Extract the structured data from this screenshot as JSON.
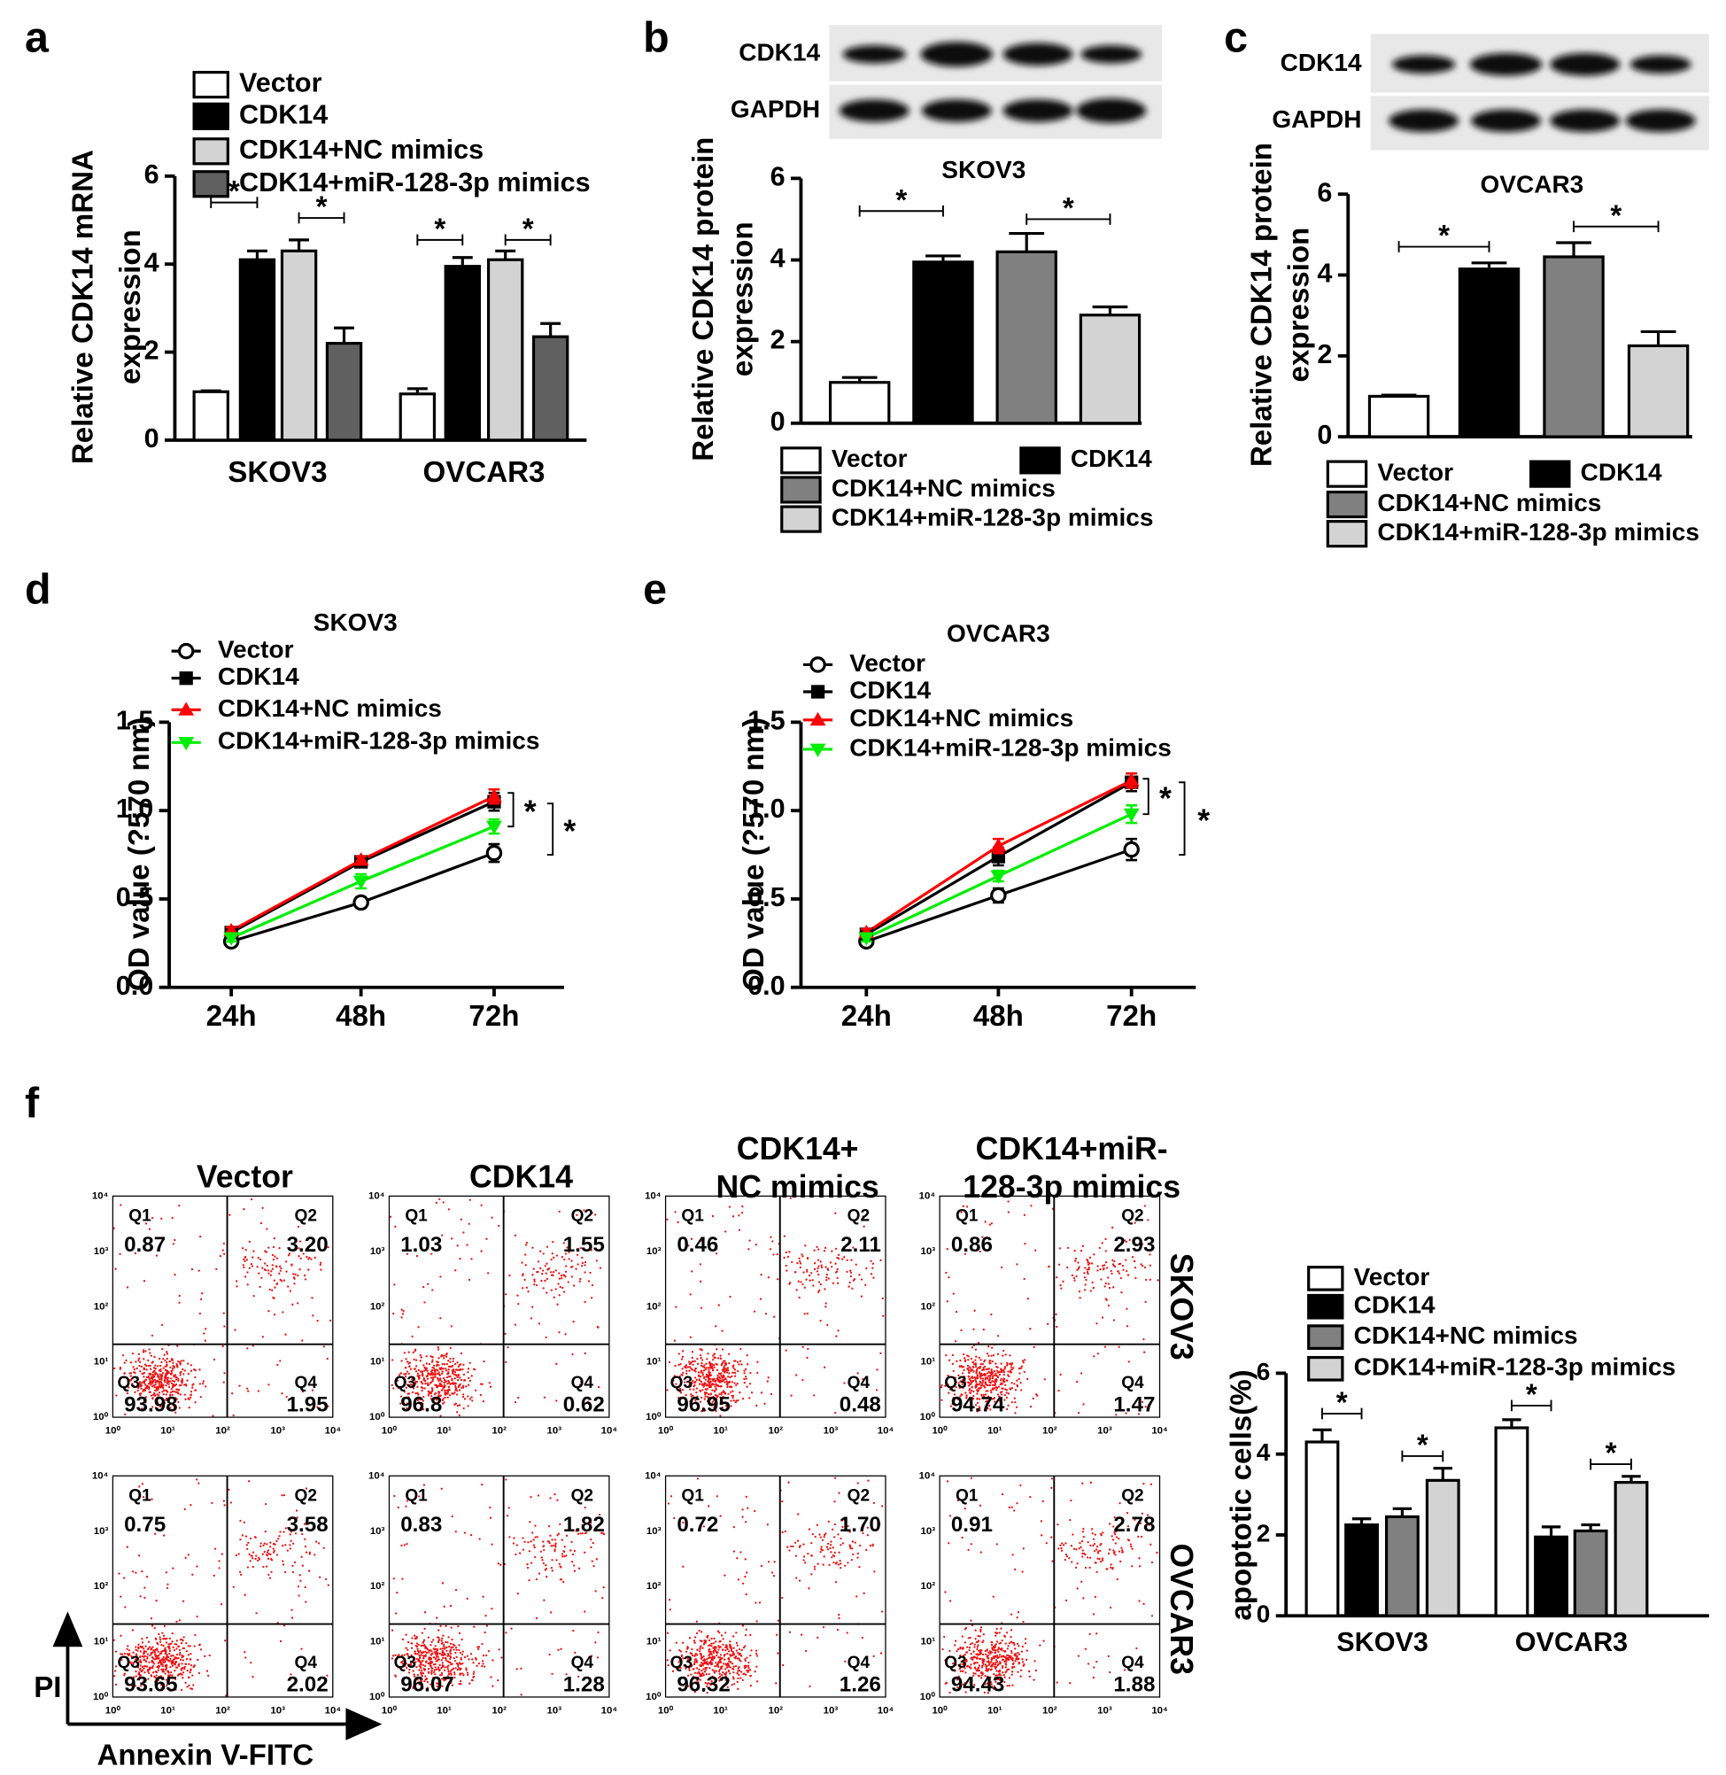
{
  "panel_labels": [
    "a",
    "b",
    "c",
    "d",
    "e",
    "f"
  ],
  "blots": [
    {
      "rows": [
        "CDK14",
        "GAPDH"
      ]
    },
    {
      "rows": [
        "CDK14",
        "GAPDH"
      ]
    }
  ],
  "chart_data": [
    {
      "type": "bar",
      "ylabel": [
        "Relative CDK14 mRNA",
        "expression"
      ],
      "categories": [
        "SKOV3",
        "OVCAR3"
      ],
      "series": [
        {
          "name": "Vector",
          "color": "#ffffff",
          "values": [
            1.1,
            1.05
          ],
          "errors": [
            0.02,
            0.12
          ]
        },
        {
          "name": "CDK14",
          "color": "#000000",
          "values": [
            4.1,
            3.95
          ],
          "errors": [
            0.2,
            0.2
          ]
        },
        {
          "name": "CDK14+NC mimics",
          "color": "#d3d3d3",
          "values": [
            4.3,
            4.1
          ],
          "errors": [
            0.25,
            0.2
          ]
        },
        {
          "name": "CDK14+miR-128-3p mimics",
          "color": "#606060",
          "values": [
            2.2,
            2.35
          ],
          "errors": [
            0.35,
            0.3
          ]
        }
      ],
      "ylim": [
        0,
        6
      ],
      "yticks": [
        0,
        2,
        4,
        6
      ],
      "significance": [
        "*",
        "*",
        "*",
        "*"
      ]
    },
    {
      "type": "bar",
      "title": "SKOV3",
      "ylabel": [
        "Relative CDK14 protein",
        "expression"
      ],
      "series": [
        {
          "name": "Vector",
          "color": "#ffffff",
          "values": [
            1.0
          ],
          "errors": [
            0.12
          ]
        },
        {
          "name": "CDK14",
          "color": "#000000",
          "values": [
            3.95
          ],
          "errors": [
            0.15
          ]
        },
        {
          "name": "CDK14+NC mimics",
          "color": "#808080",
          "values": [
            4.2
          ],
          "errors": [
            0.45
          ]
        },
        {
          "name": "CDK14+miR-128-3p mimics",
          "color": "#d3d3d3",
          "values": [
            2.65
          ],
          "errors": [
            0.2
          ]
        }
      ],
      "ylim": [
        0,
        6
      ],
      "yticks": [
        0,
        2,
        4,
        6
      ],
      "significance": [
        "*",
        "*"
      ]
    },
    {
      "type": "bar",
      "title": "OVCAR3",
      "ylabel": [
        "Relative CDK14 protein",
        "expression"
      ],
      "series": [
        {
          "name": "Vector",
          "color": "#ffffff",
          "values": [
            1.0
          ],
          "errors": [
            0.03
          ]
        },
        {
          "name": "CDK14",
          "color": "#000000",
          "values": [
            4.15
          ],
          "errors": [
            0.15
          ]
        },
        {
          "name": "CDK14+NC mimics",
          "color": "#808080",
          "values": [
            4.45
          ],
          "errors": [
            0.35
          ]
        },
        {
          "name": "CDK14+miR-128-3p mimics",
          "color": "#d3d3d3",
          "values": [
            2.25
          ],
          "errors": [
            0.35
          ]
        }
      ],
      "ylim": [
        0,
        6
      ],
      "yticks": [
        0,
        2,
        4,
        6
      ],
      "significance": [
        "*",
        "*"
      ]
    },
    {
      "type": "line",
      "title": "SKOV3",
      "ylabel": "OD value (?570 nm)",
      "categories": [
        "24h",
        "48h",
        "72h"
      ],
      "series": [
        {
          "name": "Vector",
          "color": "#000000",
          "marker": "open-circle",
          "values": [
            0.26,
            0.48,
            0.76
          ],
          "errors": [
            0.02,
            0.03,
            0.05
          ]
        },
        {
          "name": "CDK14",
          "color": "#000000",
          "marker": "square",
          "values": [
            0.31,
            0.71,
            1.05
          ],
          "errors": [
            0.02,
            0.02,
            0.05
          ]
        },
        {
          "name": "CDK14+NC mimics",
          "color": "#ff0000",
          "marker": "triangle",
          "values": [
            0.32,
            0.72,
            1.08
          ],
          "errors": [
            0.02,
            0.02,
            0.04
          ]
        },
        {
          "name": "CDK14+miR-128-3p mimics",
          "color": "#00ee00",
          "marker": "triangle-down",
          "values": [
            0.28,
            0.6,
            0.91
          ],
          "errors": [
            0.02,
            0.04,
            0.04
          ]
        }
      ],
      "ylim": [
        0,
        1.5
      ],
      "yticks": [
        {
          "value": 0,
          "label": "0.0"
        },
        {
          "value": 0.5,
          "label": "0.5"
        },
        {
          "value": 1,
          "label": "1.0"
        },
        {
          "value": 1.5,
          "label": "1.5"
        }
      ],
      "significance": [
        "*",
        "*"
      ]
    },
    {
      "type": "line",
      "title": "OVCAR3",
      "ylabel": "OD value (?570 nm)",
      "categories": [
        "24h",
        "48h",
        "72h"
      ],
      "series": [
        {
          "name": "Vector",
          "color": "#000000",
          "marker": "open-circle",
          "values": [
            0.26,
            0.52,
            0.78
          ],
          "errors": [
            0.02,
            0.04,
            0.06
          ]
        },
        {
          "name": "CDK14",
          "color": "#000000",
          "marker": "square",
          "values": [
            0.3,
            0.74,
            1.16
          ],
          "errors": [
            0.02,
            0.05,
            0.05
          ]
        },
        {
          "name": "CDK14+NC mimics",
          "color": "#ff0000",
          "marker": "triangle",
          "values": [
            0.31,
            0.8,
            1.17
          ],
          "errors": [
            0.02,
            0.04,
            0.04
          ]
        },
        {
          "name": "CDK14+miR-128-3p mimics",
          "color": "#00ee00",
          "marker": "triangle-down",
          "values": [
            0.28,
            0.63,
            0.98
          ],
          "errors": [
            0.02,
            0.03,
            0.05
          ]
        }
      ],
      "ylim": [
        0,
        1.5
      ],
      "yticks": [
        {
          "value": 0,
          "label": "0.0"
        },
        {
          "value": 0.5,
          "label": "0.5"
        },
        {
          "value": 1,
          "label": "1.0"
        },
        {
          "value": 1.5,
          "label": "1.5"
        }
      ],
      "significance": [
        "*",
        "*"
      ]
    },
    {
      "type": "bar",
      "ylabel": "apoptotic cells(%)",
      "categories": [
        "SKOV3",
        "OVCAR3"
      ],
      "series": [
        {
          "name": "Vector",
          "color": "#ffffff",
          "values": [
            4.3,
            4.65
          ],
          "errors": [
            0.3,
            0.2
          ]
        },
        {
          "name": "CDK14",
          "color": "#000000",
          "values": [
            2.25,
            1.95
          ],
          "errors": [
            0.15,
            0.25
          ]
        },
        {
          "name": "CDK14+NC mimics",
          "color": "#808080",
          "values": [
            2.45,
            2.1
          ],
          "errors": [
            0.2,
            0.15
          ]
        },
        {
          "name": "CDK14+miR-128-3p mimics",
          "color": "#d3d3d3",
          "values": [
            3.35,
            3.3
          ],
          "errors": [
            0.3,
            0.15
          ]
        }
      ],
      "ylim": [
        0,
        6
      ],
      "yticks": [
        0,
        2,
        4,
        6
      ],
      "significance": [
        "*",
        "*",
        "*",
        "*"
      ]
    }
  ],
  "flow": {
    "columns": [
      [
        "Vector"
      ],
      [
        "CDK14"
      ],
      [
        "CDK14+",
        "NC mimics"
      ],
      [
        "CDK14+miR-",
        "128-3p mimics"
      ]
    ],
    "rows": [
      "SKOV3",
      "OVCAR3"
    ],
    "quadrants": [
      "Q1",
      "Q2",
      "Q3",
      "Q4"
    ],
    "values": [
      [
        [
          "0.87",
          "3.20",
          "93.98",
          "1.95"
        ],
        [
          "1.03",
          "1.55",
          "96.8",
          "0.62"
        ],
        [
          "0.46",
          "2.11",
          "96.95",
          "0.48"
        ],
        [
          "0.86",
          "2.93",
          "94.74",
          "1.47"
        ]
      ],
      [
        [
          "0.75",
          "3.58",
          "93.65",
          "2.02"
        ],
        [
          "0.83",
          "1.82",
          "96.07",
          "1.28"
        ],
        [
          "0.72",
          "1.70",
          "96.32",
          "1.26"
        ],
        [
          "0.91",
          "2.78",
          "94.43",
          "1.88"
        ]
      ]
    ],
    "axis_ticks": [
      "10⁰",
      "10¹",
      "10²",
      "10³",
      "10⁴"
    ],
    "xlabel": "Annexin V-FITC",
    "ylabel": "PI"
  }
}
